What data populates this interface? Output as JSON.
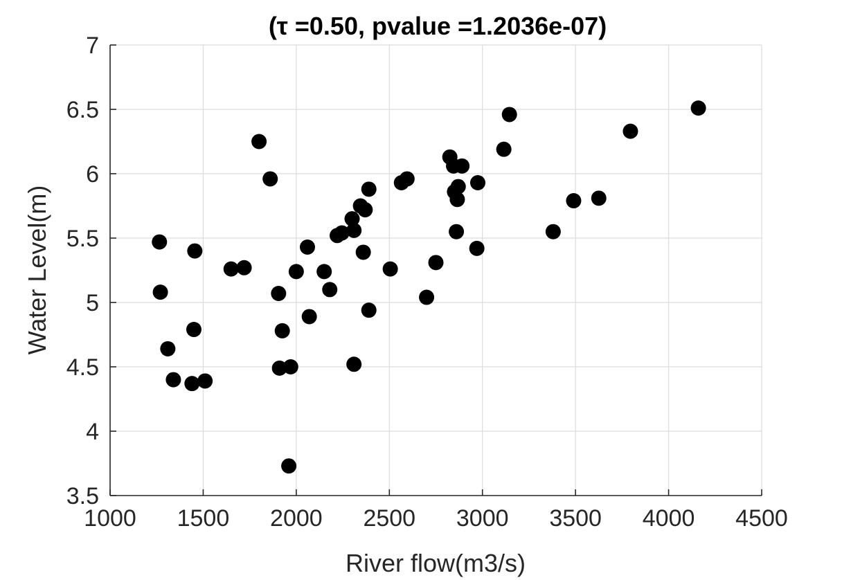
{
  "chart_data": {
    "type": "scatter",
    "title": "(τ =0.50, pvalue =1.2036e-07)",
    "xlabel": "River flow(m3/s)",
    "ylabel": "Water Level(m)",
    "xlim": [
      1000,
      4500
    ],
    "ylim": [
      3.5,
      7
    ],
    "xticks": [
      1000,
      1500,
      2000,
      2500,
      3000,
      3500,
      4000,
      4500
    ],
    "yticks": [
      3.5,
      4,
      4.5,
      5,
      5.5,
      6,
      6.5,
      7
    ],
    "xtick_labels": [
      "1000",
      "1500",
      "2000",
      "2500",
      "3000",
      "3500",
      "4000",
      "4500"
    ],
    "ytick_labels": [
      "3.5",
      "4",
      "4.5",
      "5",
      "5.5",
      "6",
      "6.5",
      "7"
    ],
    "grid": true,
    "marker_color": "#000000",
    "points": [
      [
        1265,
        5.47
      ],
      [
        1270,
        5.08
      ],
      [
        1310,
        4.64
      ],
      [
        1340,
        4.4
      ],
      [
        1440,
        4.37
      ],
      [
        1450,
        4.79
      ],
      [
        1455,
        5.4
      ],
      [
        1510,
        4.39
      ],
      [
        1650,
        5.26
      ],
      [
        1720,
        5.27
      ],
      [
        1800,
        6.25
      ],
      [
        1860,
        5.96
      ],
      [
        1905,
        5.07
      ],
      [
        1910,
        4.49
      ],
      [
        1925,
        4.78
      ],
      [
        1970,
        4.5
      ],
      [
        1960,
        3.73
      ],
      [
        2000,
        5.24
      ],
      [
        2060,
        5.43
      ],
      [
        2070,
        4.89
      ],
      [
        2150,
        5.24
      ],
      [
        2180,
        5.1
      ],
      [
        2220,
        5.52
      ],
      [
        2245,
        5.54
      ],
      [
        2300,
        5.65
      ],
      [
        2310,
        5.56
      ],
      [
        2310,
        4.52
      ],
      [
        2345,
        5.75
      ],
      [
        2360,
        5.39
      ],
      [
        2370,
        5.72
      ],
      [
        2390,
        5.88
      ],
      [
        2390,
        4.94
      ],
      [
        2505,
        5.26
      ],
      [
        2565,
        5.93
      ],
      [
        2595,
        5.96
      ],
      [
        2700,
        5.04
      ],
      [
        2750,
        5.31
      ],
      [
        2825,
        6.13
      ],
      [
        2845,
        6.06
      ],
      [
        2850,
        5.86
      ],
      [
        2860,
        5.55
      ],
      [
        2865,
        5.8
      ],
      [
        2870,
        5.9
      ],
      [
        2890,
        6.06
      ],
      [
        2970,
        5.42
      ],
      [
        2975,
        5.93
      ],
      [
        3115,
        6.19
      ],
      [
        3145,
        6.46
      ],
      [
        3380,
        5.55
      ],
      [
        3490,
        5.79
      ],
      [
        3625,
        5.81
      ],
      [
        3795,
        6.33
      ],
      [
        4160,
        6.51
      ]
    ]
  }
}
